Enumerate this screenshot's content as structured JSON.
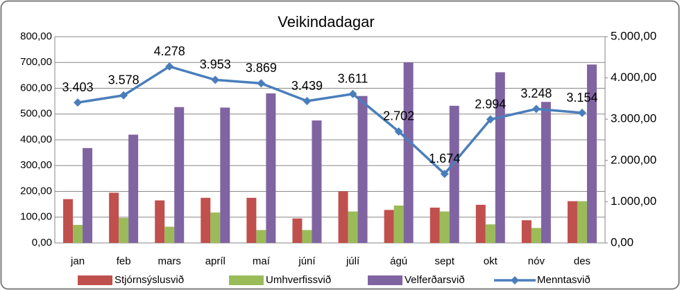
{
  "chart_data": {
    "type": "bar",
    "title": "Veikindadagar",
    "categories": [
      "jan",
      "feb",
      "mars",
      "apríl",
      "maí",
      "júní",
      "júlí",
      "ágú",
      "sept",
      "okt",
      "nóv",
      "des"
    ],
    "series": [
      {
        "name": "Stjórnsýslusvið",
        "color": "#c0504d",
        "values": [
          170,
          195,
          165,
          175,
          175,
          95,
          200,
          128,
          137,
          148,
          88,
          162
        ]
      },
      {
        "name": "Umhverfissvið",
        "color": "#9bbb59",
        "values": [
          70,
          97,
          63,
          118,
          50,
          50,
          122,
          145,
          122,
          72,
          58,
          162
        ]
      },
      {
        "name": "Velferðarsvið",
        "color": "#8064a2",
        "values": [
          368,
          420,
          527,
          525,
          580,
          475,
          570,
          700,
          532,
          662,
          547,
          692
        ]
      },
      {
        "name": "Menntasvið",
        "color": "#4a7ebb",
        "type": "line",
        "axis": "y2",
        "values": [
          3403,
          3578,
          4278,
          3953,
          3869,
          3439,
          3611,
          2702,
          1674,
          2994,
          3248,
          3154
        ],
        "value_labels": [
          "3.403",
          "3.578",
          "4.278",
          "3.953",
          "3.869",
          "3.439",
          "3.611",
          "2.702",
          "1.674",
          "2.994",
          "3.248",
          "3.154"
        ]
      }
    ],
    "ylim": [
      0,
      800
    ],
    "yticks": [
      {
        "value": 0,
        "label": "0,00"
      },
      {
        "value": 100,
        "label": "100,00"
      },
      {
        "value": 200,
        "label": "200,00"
      },
      {
        "value": 300,
        "label": "300,00"
      },
      {
        "value": 400,
        "label": "400,00"
      },
      {
        "value": 500,
        "label": "500,00"
      },
      {
        "value": 600,
        "label": "600,00"
      },
      {
        "value": 700,
        "label": "700,00"
      },
      {
        "value": 800,
        "label": "800,00"
      }
    ],
    "y2lim": [
      0,
      5000
    ],
    "y2ticks": [
      {
        "value": 0,
        "label": "0,00"
      },
      {
        "value": 1000,
        "label": "1.000,00"
      },
      {
        "value": 2000,
        "label": "2.000,00"
      },
      {
        "value": 3000,
        "label": "3.000,00"
      },
      {
        "value": 4000,
        "label": "4.000,00"
      },
      {
        "value": 5000,
        "label": "5.000,00"
      }
    ],
    "grid": true,
    "legend": "bottom"
  }
}
